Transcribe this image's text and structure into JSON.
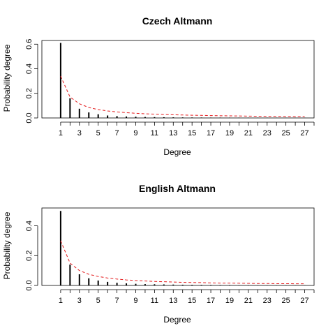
{
  "chart_data": [
    {
      "type": "bar",
      "title": "Czech Altmann",
      "xlabel": "Degree",
      "ylabel": "Probability degree",
      "xlim": [
        -1,
        28
      ],
      "ylim": [
        0,
        0.63
      ],
      "x_ticks": [
        1,
        3,
        5,
        7,
        9,
        11,
        13,
        15,
        17,
        19,
        21,
        23,
        25,
        27
      ],
      "y_ticks": [
        0.0,
        0.2,
        0.4,
        0.6
      ],
      "y_tick_labels": [
        "0.0",
        "0.2",
        "0.4",
        "0.6"
      ],
      "x": [
        1,
        2,
        3,
        4,
        5,
        6,
        7,
        8,
        9,
        10,
        11,
        12,
        13,
        14,
        15,
        16,
        17,
        18,
        19,
        20,
        21,
        22,
        23,
        24,
        25,
        26,
        27
      ],
      "series": [
        {
          "style": "bars",
          "color": "#000000",
          "values": [
            0.61,
            0.16,
            0.075,
            0.045,
            0.03,
            0.02,
            0.015,
            0.012,
            0.01,
            0.008,
            0.007,
            0.006,
            0.005,
            0.0045,
            0.004,
            0.0035,
            0.003,
            0.003,
            0.0025,
            0.0025,
            0.002,
            0.002,
            0.002,
            0.0018,
            0.0016,
            0.0015,
            0.0014
          ]
        },
        {
          "style": "dashed-line",
          "color": "#e41a1c",
          "values": [
            0.34,
            0.17,
            0.115,
            0.085,
            0.068,
            0.057,
            0.049,
            0.043,
            0.038,
            0.034,
            0.031,
            0.028,
            0.026,
            0.024,
            0.022,
            0.021,
            0.019,
            0.018,
            0.017,
            0.016,
            0.015,
            0.014,
            0.013,
            0.013,
            0.012,
            0.011,
            0.011
          ]
        }
      ]
    },
    {
      "type": "bar",
      "title": "English Altmann",
      "xlabel": "Degree",
      "ylabel": "Probability degree",
      "xlim": [
        -1,
        28
      ],
      "ylim": [
        0,
        0.52
      ],
      "x_ticks": [
        1,
        3,
        5,
        7,
        9,
        11,
        13,
        15,
        17,
        19,
        21,
        23,
        25,
        27
      ],
      "y_ticks": [
        0.0,
        0.2,
        0.4
      ],
      "y_tick_labels": [
        "0.0",
        "0.2",
        "0.4"
      ],
      "x": [
        1,
        2,
        3,
        4,
        5,
        6,
        7,
        8,
        9,
        10,
        11,
        12,
        13,
        14,
        15,
        16,
        17,
        18,
        19,
        20,
        21,
        22,
        23,
        24,
        25,
        26,
        27
      ],
      "series": [
        {
          "style": "bars",
          "color": "#000000",
          "values": [
            0.5,
            0.14,
            0.075,
            0.048,
            0.033,
            0.024,
            0.018,
            0.014,
            0.011,
            0.009,
            0.008,
            0.007,
            0.006,
            0.005,
            0.0045,
            0.004,
            0.0035,
            0.003,
            0.003,
            0.0025,
            0.0025,
            0.002,
            0.002,
            0.002,
            0.0018,
            0.0016,
            0.0015
          ]
        },
        {
          "style": "dashed-line",
          "color": "#e41a1c",
          "values": [
            0.3,
            0.15,
            0.1,
            0.075,
            0.06,
            0.05,
            0.043,
            0.037,
            0.033,
            0.03,
            0.027,
            0.025,
            0.023,
            0.021,
            0.02,
            0.019,
            0.017,
            0.016,
            0.016,
            0.015,
            0.014,
            0.013,
            0.013,
            0.012,
            0.012,
            0.011,
            0.011
          ]
        }
      ]
    }
  ]
}
